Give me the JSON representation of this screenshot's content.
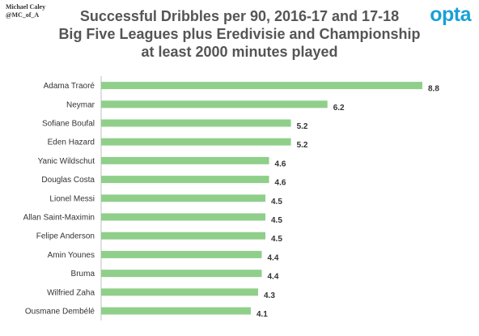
{
  "credit": {
    "line1": "Michael Caley",
    "line2": "@MC_of_A"
  },
  "brand": "opta",
  "colors": {
    "bar": "#8fcf8a",
    "text": "#333333",
    "title": "#555555",
    "brand": "#1aa0d7",
    "axis": "#bfbfbf"
  },
  "chart_data": {
    "type": "bar",
    "orientation": "horizontal",
    "title_lines": [
      "Successful Dribbles per 90, 2016-17 and 17-18",
      "Big Five Leagues plus Eredivisie and Championship",
      "at least 2000 minutes played"
    ],
    "categories": [
      "Adama Traoré",
      "Neymar",
      "Sofiane Boufal",
      "Eden Hazard",
      "Yanic Wildschut",
      "Douglas Costa",
      "Lionel Messi",
      "Allan Saint-Maximin",
      "Felipe Anderson",
      "Amin Younes",
      "Bruma",
      "Wilfried Zaha",
      "Ousmane Dembélé"
    ],
    "values": [
      8.8,
      6.2,
      5.2,
      5.2,
      4.6,
      4.6,
      4.5,
      4.5,
      4.5,
      4.4,
      4.4,
      4.3,
      4.1
    ],
    "value_labels": [
      "8.8",
      "6.2",
      "5.2",
      "5.2",
      "4.6",
      "4.6",
      "4.5",
      "4.5",
      "4.5",
      "4.4",
      "4.4",
      "4.3",
      "4.1"
    ],
    "xlim": [
      0,
      8.8
    ],
    "grid": false,
    "legend": "none"
  }
}
